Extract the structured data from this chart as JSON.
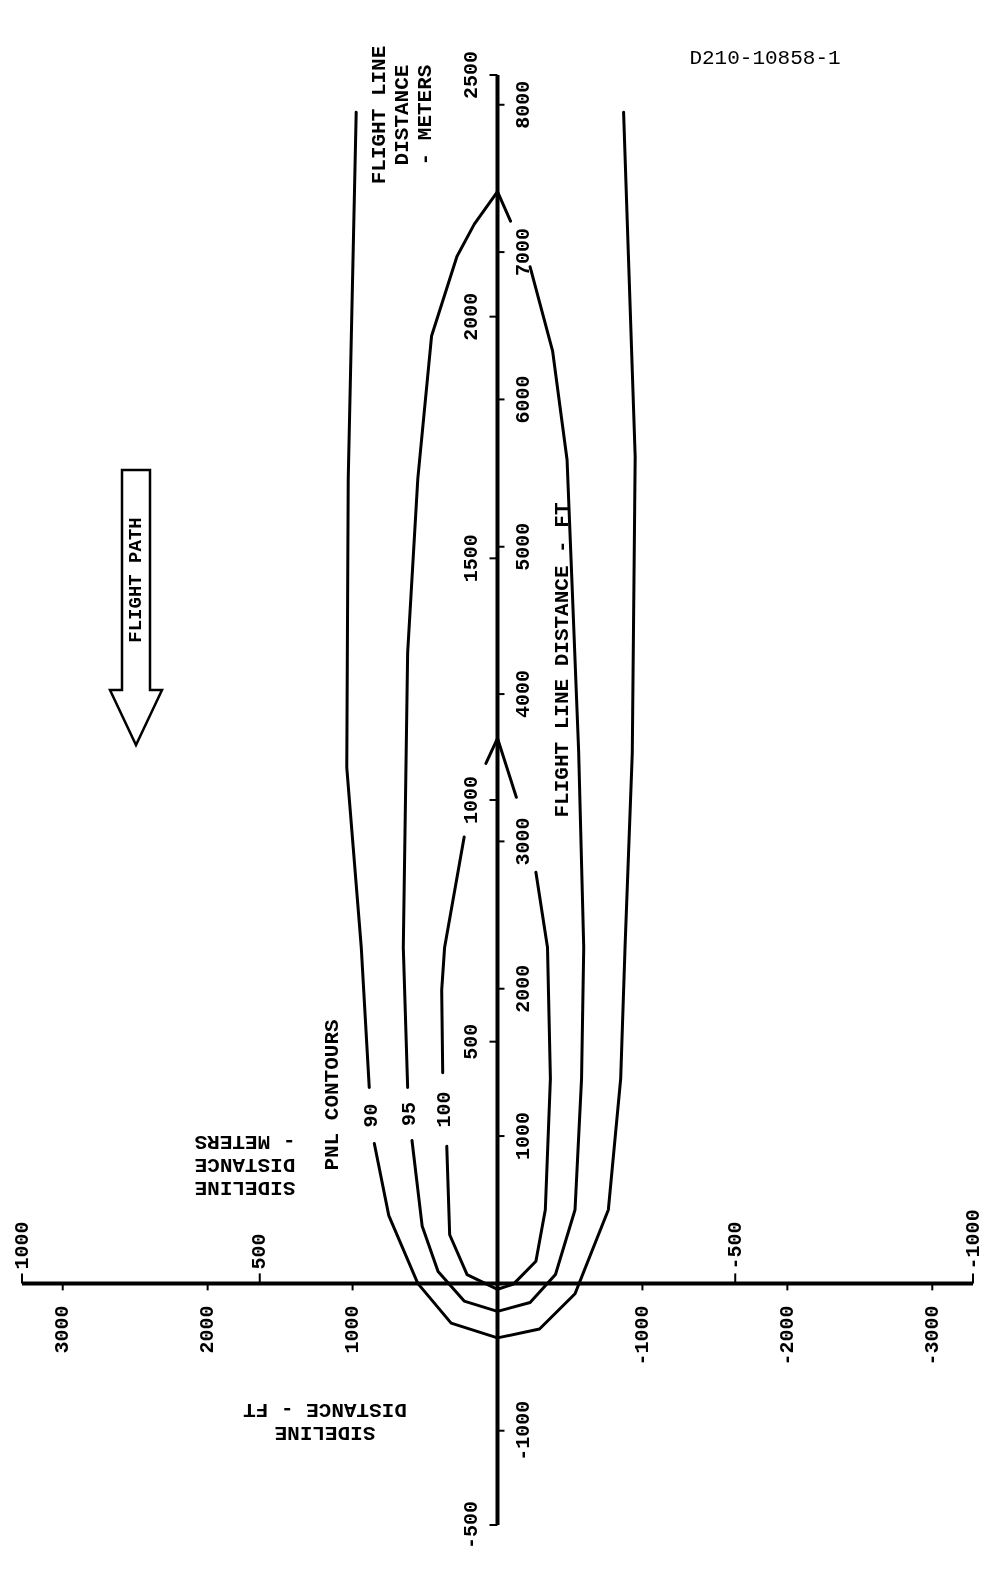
{
  "chart_data": {
    "type": "line",
    "ylabel": "FLIGHT LINE DISTANCE - FT",
    "y2label": "FLIGHT LINE\nDISTANCE\n- METERS",
    "xlabel": "SIDELINE\nDISTANCE - FT",
    "x2label": "SIDELINE\nDISTANCE\n- METERS",
    "ylim": [
      -1640,
      8202
    ],
    "yticks": [
      -1000,
      1000,
      2000,
      3000,
      4000,
      5000,
      6000,
      7000,
      8000
    ],
    "y2lim": [
      -500,
      2500
    ],
    "y2ticks": [
      -500,
      500,
      1000,
      1500,
      2000,
      2500
    ],
    "xlim": [
      3281,
      -3281
    ],
    "xticks": [
      3000,
      2000,
      1000,
      -1000,
      -2000,
      -3000
    ],
    "x2lim": [
      1000,
      -1000
    ],
    "x2ticks": [
      1000,
      500,
      -500,
      -1000
    ],
    "line_style": "solid",
    "series": [
      {
        "name": "90",
        "color": "#000000",
        "values": [
          7950,
          5460,
          3500,
          2280,
          1330,
          null,
          950,
          460,
          0,
          -270,
          -370,
          -310,
          -70,
          500,
          1390,
          2280,
          3600,
          5610,
          7950
        ],
        "x": [
          975,
          1030,
          1040,
          940,
          885,
          null,
          850,
          750,
          550,
          320,
          0,
          -290,
          -535,
          -765,
          -850,
          -880,
          -930,
          -950,
          -870
        ]
      },
      {
        "name": "95",
        "color": "#000000",
        "values": [
          7410,
          7190,
          6970,
          6430,
          5460,
          4280,
          2280,
          1330,
          null,
          970,
          390,
          80,
          -120,
          -190,
          -130,
          60,
          500,
          1390,
          2280,
          3610,
          4730,
          5590,
          6330,
          6900,
          null,
          7210,
          7410
        ],
        "x": [
          0,
          160,
          280,
          455,
          550,
          620,
          650,
          620,
          null,
          590,
          520,
          410,
          230,
          0,
          -225,
          -400,
          -535,
          -580,
          -595,
          -560,
          -515,
          -480,
          -380,
          -225,
          null,
          -90,
          0
        ]
      },
      {
        "name": "100",
        "color": "#000000",
        "values": [
          3030,
          2280,
          1990,
          1430,
          null,
          930,
          330,
          60,
          -40,
          -5,
          150,
          500,
          1390,
          2280,
          2790,
          null,
          3300,
          3700,
          3530
        ],
        "x": [
          230,
          365,
          385,
          378,
          null,
          350,
          330,
          210,
          0,
          -110,
          -265,
          -330,
          -365,
          -345,
          -265,
          null,
          -130,
          0,
          80
        ]
      }
    ],
    "annotations": [
      "PNL CONTOURS",
      "FLIGHT PATH",
      "D210-10858-1"
    ]
  }
}
